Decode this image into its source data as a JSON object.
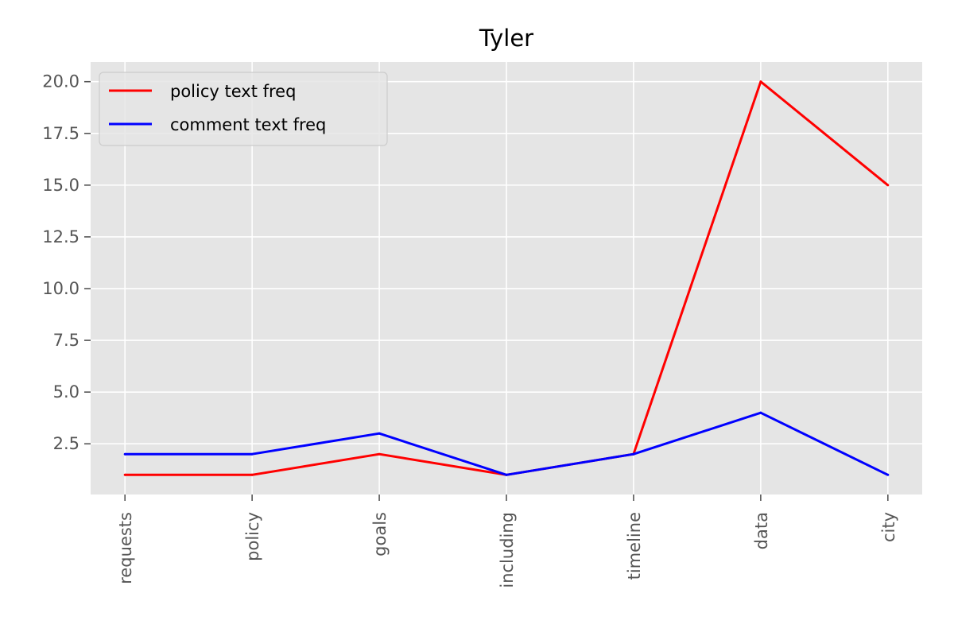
{
  "chart_data": {
    "type": "line",
    "title": "Tyler",
    "xlabel": "",
    "ylabel": "",
    "categories": [
      "requests",
      "policy",
      "goals",
      "including",
      "timeline",
      "data",
      "city"
    ],
    "series": [
      {
        "name": "policy text freq",
        "color": "#ff0000",
        "values": [
          1,
          1,
          2,
          1,
          2,
          20,
          15
        ]
      },
      {
        "name": "comment text freq",
        "color": "#0000ff",
        "values": [
          2,
          2,
          3,
          1,
          2,
          4,
          1
        ]
      }
    ],
    "ylim": [
      0.05,
      20.95
    ],
    "yticks": [
      2.5,
      5.0,
      7.5,
      10.0,
      12.5,
      15.0,
      17.5,
      20.0
    ],
    "ytick_labels": [
      "2.5",
      "5.0",
      "7.5",
      "10.0",
      "12.5",
      "15.0",
      "17.5",
      "20.0"
    ],
    "grid": true,
    "legend_position": "upper-left",
    "colors": {
      "plot_background": "#e5e5e5",
      "grid": "#ffffff",
      "tick_text": "#555555"
    }
  }
}
